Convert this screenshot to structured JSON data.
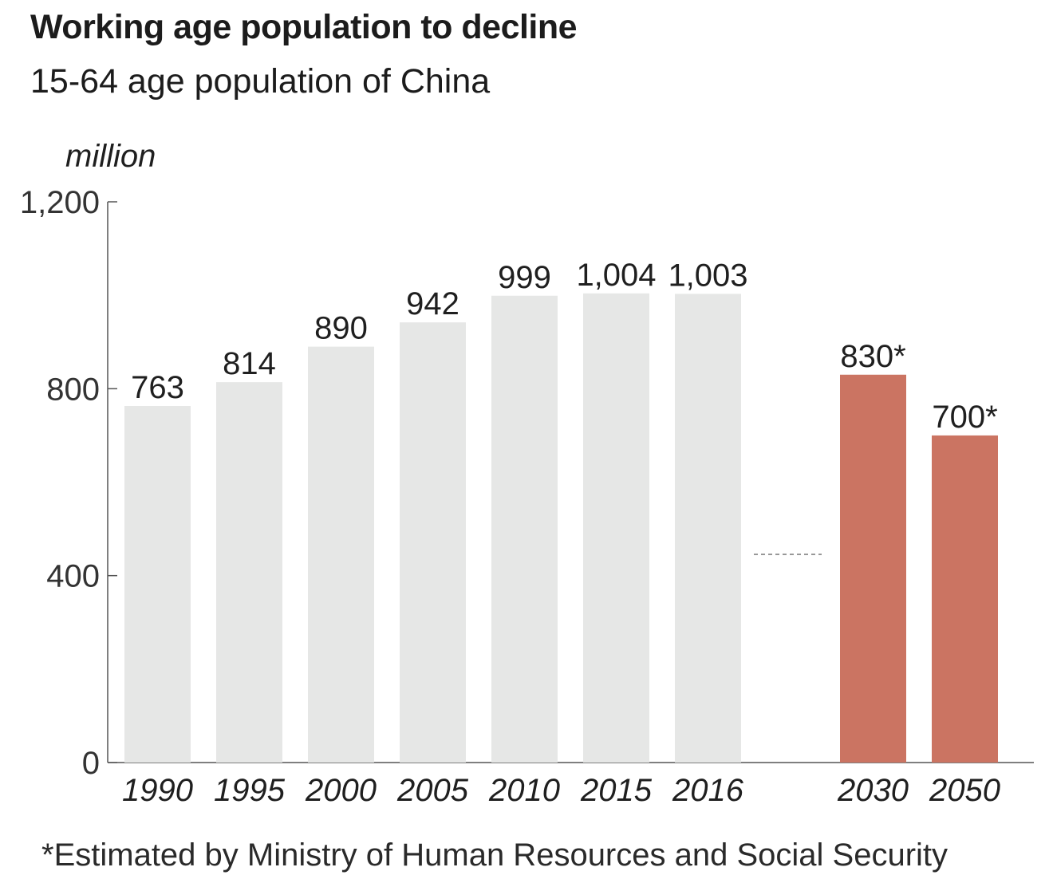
{
  "header": {
    "title": "Working age population to decline",
    "subtitle": "15-64 age population of China"
  },
  "footnote": "*Estimated by Ministry of Human Resources and Social Security",
  "chart_data": {
    "type": "bar",
    "title": "Working age population to decline",
    "subtitle": "15-64 age population of China",
    "unit_label": "million",
    "ylim": [
      0,
      1200
    ],
    "yticks": [
      0,
      400,
      800,
      1200
    ],
    "ytick_labels": [
      "0",
      "400",
      "800",
      "1,200"
    ],
    "grid": false,
    "categories": [
      "1990",
      "1995",
      "2000",
      "2005",
      "2010",
      "2015",
      "2016",
      "2030",
      "2050"
    ],
    "values": [
      763,
      814,
      890,
      942,
      999,
      1004,
      1003,
      830,
      700
    ],
    "data_labels": [
      "763",
      "814",
      "890",
      "942",
      "999",
      "1,004",
      "1,003",
      "830*",
      "700*"
    ],
    "estimated": [
      false,
      false,
      false,
      false,
      false,
      false,
      false,
      true,
      true
    ],
    "colors": {
      "actual": "#e6e7e6",
      "estimated": "#cb7462",
      "axis": "#555555",
      "separator": "#777777"
    }
  }
}
